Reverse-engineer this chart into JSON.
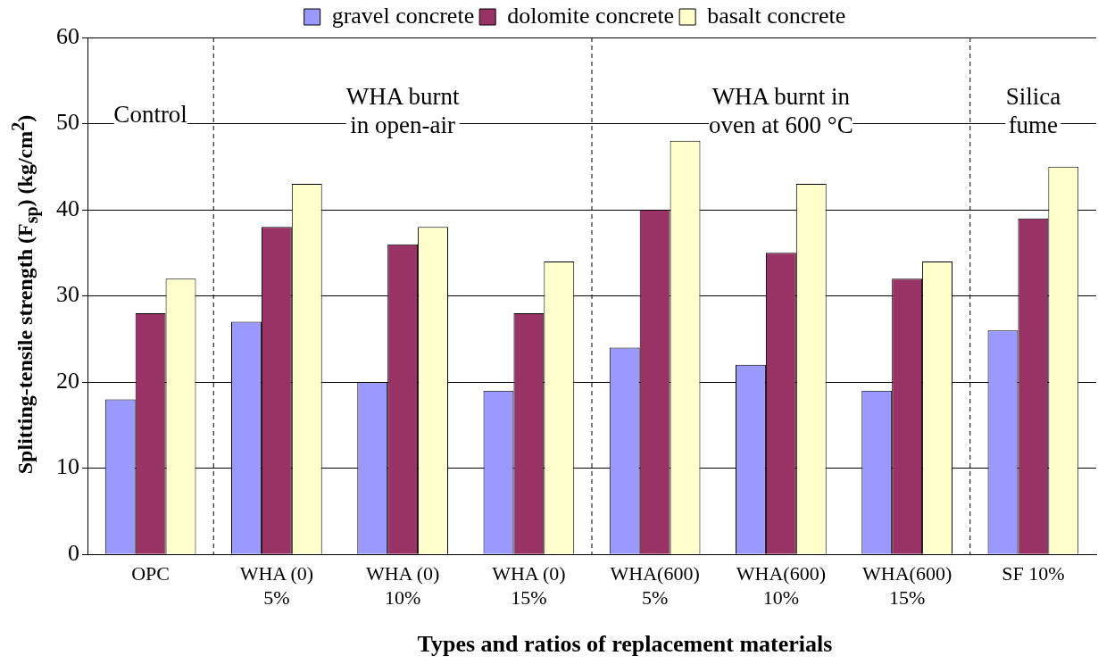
{
  "chart_data": {
    "type": "bar",
    "xlabel": "Types and ratios of replacement materials",
    "ylabel": "Splitting-tensile strength (F$_{sp}$) (kg/cm$^{2}$)",
    "categories": [
      "OPC",
      "WHA (0)\n5%",
      "WHA (0)\n10%",
      "WHA (0)\n15%",
      "WHA(600)\n5%",
      "WHA(600)\n10%",
      "WHA(600)\n15%",
      "SF 10%"
    ],
    "series": [
      {
        "name": "gravel concrete",
        "color": "#9999ff",
        "values": [
          18,
          27,
          20,
          19,
          24,
          22,
          19,
          26
        ]
      },
      {
        "name": "dolomite concrete",
        "color": "#993366",
        "values": [
          28,
          38,
          36,
          28,
          40,
          35,
          32,
          39
        ]
      },
      {
        "name": "basalt concrete",
        "color": "#ffffcc",
        "values": [
          32,
          43,
          38,
          34,
          48,
          43,
          34,
          45
        ]
      }
    ],
    "ylim": [
      0,
      60
    ],
    "yticks": [
      0,
      10,
      20,
      30,
      40,
      50,
      60
    ],
    "grid": "y",
    "legend": "top",
    "annotations": [
      "Control",
      "WHA burnt\nin open-air",
      "WHA burnt in\noven at 600 °C",
      "Silica\nfume"
    ]
  }
}
